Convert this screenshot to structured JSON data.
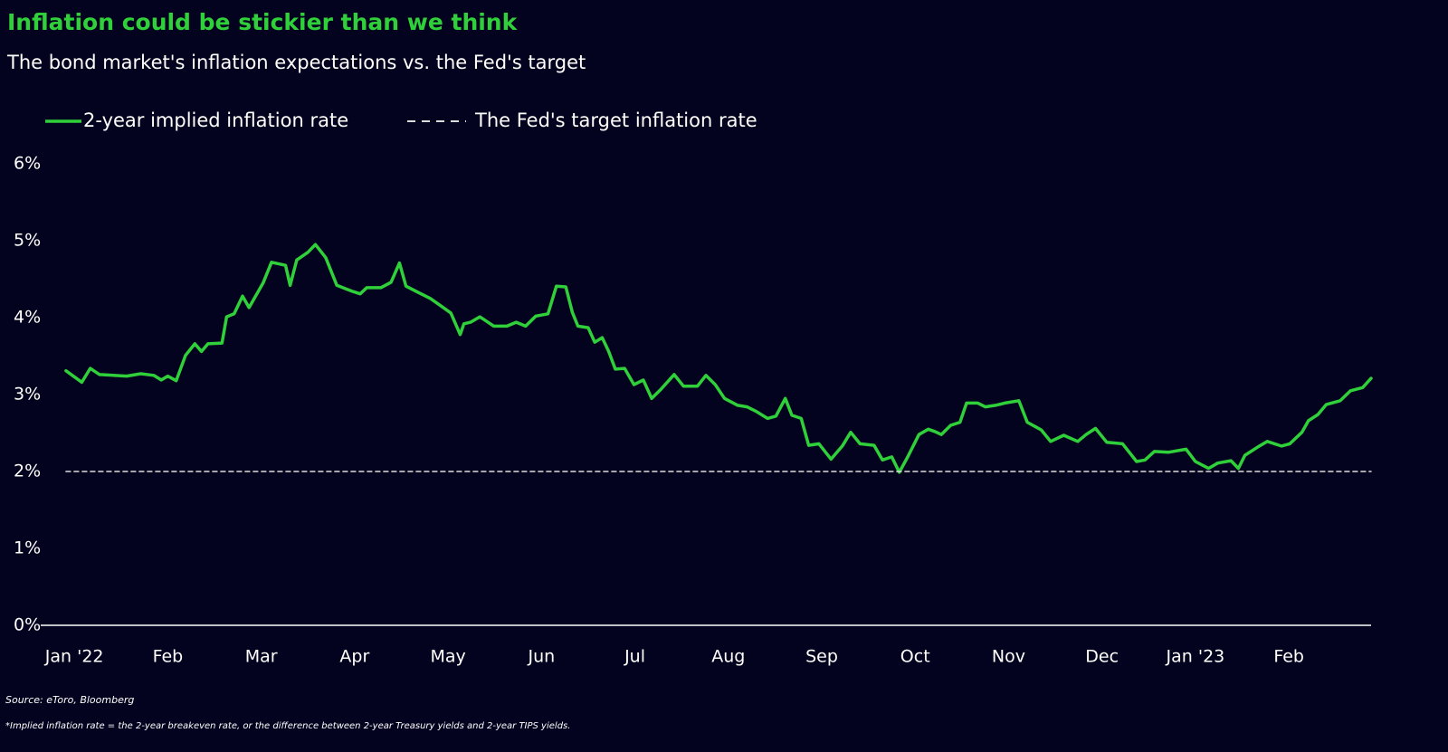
{
  "chart_data": {
    "type": "line",
    "title": "Inflation could be stickier than we think",
    "subtitle": "The bond market's inflation expectations vs. the Fed's target",
    "source": "Source: eToro, Bloomberg",
    "footnote": "*Implied inflation rate = the 2-year breakeven rate, or the difference between 2-year Treasury yields and 2-year TIPS yields.",
    "xlim": [
      -0.36,
      13.88
    ],
    "xticks": [
      {
        "value": 0,
        "label": "Jan '22"
      },
      {
        "value": 1,
        "label": "Feb"
      },
      {
        "value": 2,
        "label": "Mar"
      },
      {
        "value": 3,
        "label": "Apr"
      },
      {
        "value": 4,
        "label": "May"
      },
      {
        "value": 5,
        "label": "Jun"
      },
      {
        "value": 6,
        "label": "Jul"
      },
      {
        "value": 7,
        "label": "Aug"
      },
      {
        "value": 8,
        "label": "Sep"
      },
      {
        "value": 9,
        "label": "Oct"
      },
      {
        "value": 10,
        "label": "Nov"
      },
      {
        "value": 11,
        "label": "Dec"
      },
      {
        "value": 12,
        "label": "Jan '23"
      },
      {
        "value": 13,
        "label": "Feb"
      }
    ],
    "ylim": [
      0,
      6
    ],
    "yticks": [
      {
        "value": 0,
        "label": "0%"
      },
      {
        "value": 1,
        "label": "1%"
      },
      {
        "value": 2,
        "label": "2%"
      },
      {
        "value": 3,
        "label": "3%"
      },
      {
        "value": 4,
        "label": "4%"
      },
      {
        "value": 5,
        "label": "5%"
      },
      {
        "value": 6,
        "label": "6%"
      }
    ],
    "grid": false,
    "series": [
      {
        "name": "2-year implied inflation rate",
        "color": "#2fd03a",
        "dashed": false,
        "x": [
          -0.09,
          0.08,
          0.17,
          0.27,
          0.42,
          0.56,
          0.71,
          0.85,
          0.93,
          1.0,
          1.09,
          1.19,
          1.29,
          1.36,
          1.43,
          1.58,
          1.63,
          1.71,
          1.8,
          1.87,
          2.02,
          2.11,
          2.26,
          2.31,
          2.38,
          2.5,
          2.58,
          2.69,
          2.81,
          2.98,
          3.06,
          3.13,
          3.28,
          3.39,
          3.48,
          3.55,
          3.66,
          3.81,
          3.95,
          4.03,
          4.13,
          4.17,
          4.24,
          4.34,
          4.49,
          4.63,
          4.73,
          4.83,
          4.94,
          5.07,
          5.16,
          5.26,
          5.33,
          5.39,
          5.5,
          5.57,
          5.65,
          5.72,
          5.79,
          5.89,
          5.99,
          6.09,
          6.18,
          6.28,
          6.42,
          6.52,
          6.67,
          6.76,
          6.86,
          6.96,
          7.1,
          7.2,
          7.3,
          7.42,
          7.51,
          7.61,
          7.68,
          7.78,
          7.86,
          7.97,
          8.1,
          8.22,
          8.31,
          8.41,
          8.56,
          8.65,
          8.75,
          8.83,
          8.92,
          9.04,
          9.14,
          9.21,
          9.28,
          9.38,
          9.48,
          9.55,
          9.67,
          9.75,
          9.86,
          9.96,
          10.11,
          10.2,
          10.35,
          10.45,
          10.59,
          10.74,
          10.83,
          10.93,
          11.05,
          11.22,
          11.37,
          11.46,
          11.56,
          11.71,
          11.9,
          12.0,
          12.14,
          12.24,
          12.38,
          12.46,
          12.53,
          12.67,
          12.77,
          12.92,
          13.01,
          13.14,
          13.21,
          13.31,
          13.4,
          13.55,
          13.66,
          13.79,
          13.88
        ],
        "values": [
          3.31,
          3.16,
          3.34,
          3.26,
          3.25,
          3.24,
          3.27,
          3.25,
          3.19,
          3.24,
          3.18,
          3.51,
          3.66,
          3.56,
          3.66,
          3.67,
          4.01,
          4.05,
          4.28,
          4.13,
          4.45,
          4.72,
          4.68,
          4.42,
          4.75,
          4.85,
          4.95,
          4.78,
          4.42,
          4.34,
          4.31,
          4.39,
          4.39,
          4.46,
          4.71,
          4.41,
          4.34,
          4.25,
          4.13,
          4.06,
          3.78,
          3.92,
          3.94,
          4.01,
          3.89,
          3.89,
          3.94,
          3.89,
          4.02,
          4.05,
          4.41,
          4.4,
          4.07,
          3.89,
          3.87,
          3.68,
          3.74,
          3.56,
          3.33,
          3.34,
          3.13,
          3.19,
          2.95,
          3.07,
          3.26,
          3.11,
          3.11,
          3.25,
          3.13,
          2.95,
          2.86,
          2.84,
          2.78,
          2.69,
          2.72,
          2.95,
          2.73,
          2.69,
          2.34,
          2.36,
          2.16,
          2.33,
          2.51,
          2.36,
          2.34,
          2.15,
          2.19,
          1.99,
          2.19,
          2.48,
          2.55,
          2.52,
          2.48,
          2.6,
          2.64,
          2.89,
          2.89,
          2.84,
          2.86,
          2.89,
          2.92,
          2.64,
          2.54,
          2.39,
          2.47,
          2.39,
          2.48,
          2.56,
          2.38,
          2.36,
          2.13,
          2.15,
          2.26,
          2.25,
          2.29,
          2.13,
          2.04,
          2.11,
          2.14,
          2.04,
          2.21,
          2.32,
          2.39,
          2.33,
          2.36,
          2.51,
          2.66,
          2.74,
          2.87,
          2.92,
          3.05,
          3.09,
          3.21
        ]
      },
      {
        "name": "The Fed's target inflation rate",
        "color": "#dcdcdc",
        "dashed": true,
        "x": [
          -0.09,
          13.88
        ],
        "values": [
          2,
          2
        ]
      }
    ]
  }
}
